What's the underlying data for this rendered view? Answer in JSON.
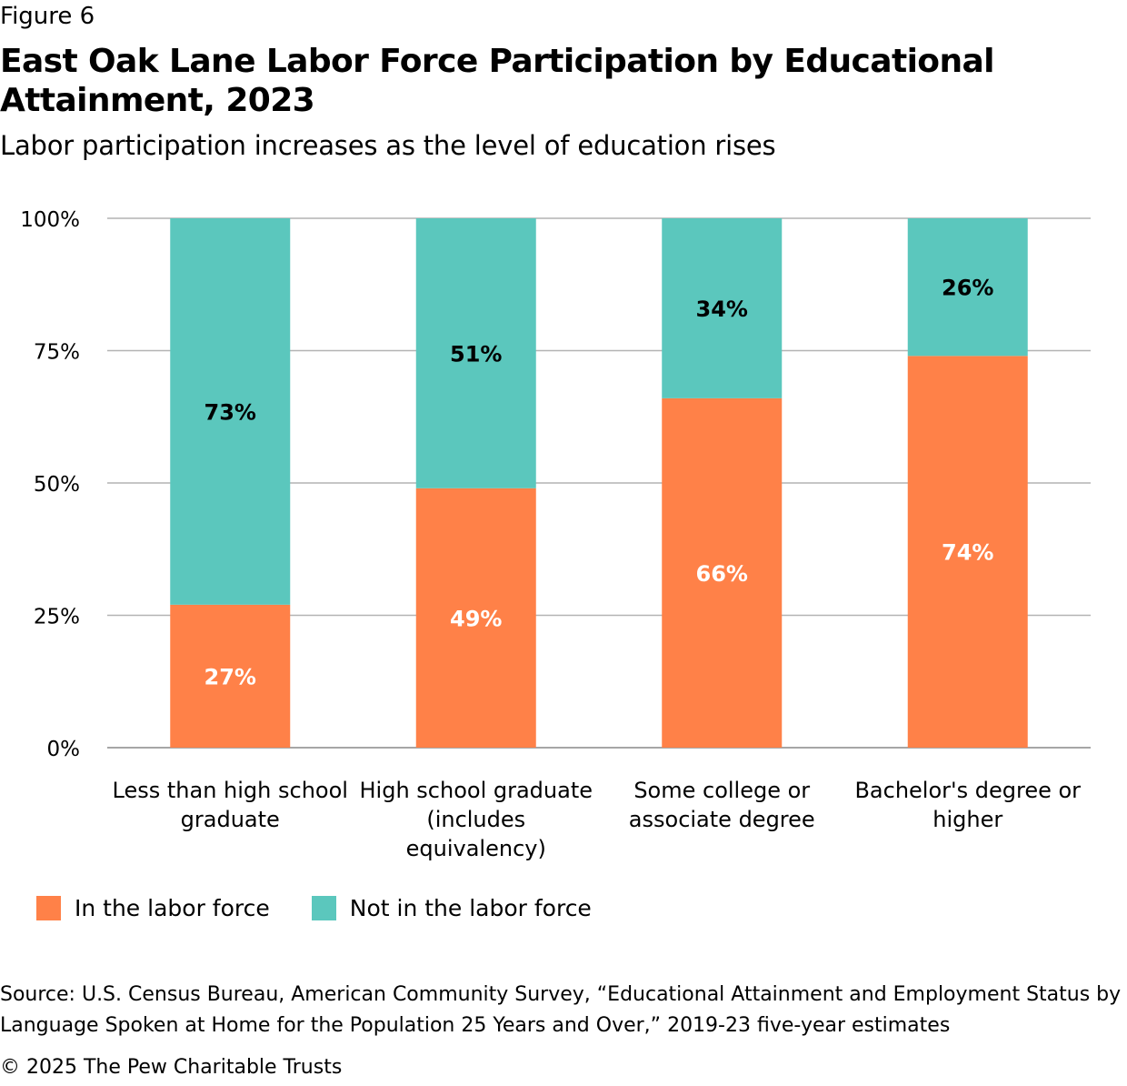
{
  "figure_label": "Figure 6",
  "title": "East Oak Lane Labor Force Participation by Educational Attainment, 2023",
  "subtitle": "Labor participation increases as the level of education rises",
  "source": "Source: U.S. Census Bureau, American Community Survey, “Educational Attainment and Employment Status by Language Spoken at Home for the Population 25 Years and Over,” 2019-23 five-year estimates",
  "copyright": "© 2025 The Pew Charitable Trusts",
  "colors": {
    "in_labor_force": "#FF8148",
    "not_in_labor_force": "#5BC7BD",
    "grid": "#b3b3b3"
  },
  "chart_data": {
    "type": "bar",
    "stacked": true,
    "categories": [
      [
        "Less than high school",
        "graduate"
      ],
      [
        "High school graduate",
        "(includes",
        "equivalency)"
      ],
      [
        "Some college or",
        "associate degree"
      ],
      [
        "Bachelor's degree or",
        "higher"
      ]
    ],
    "series": [
      {
        "name": "In the labor force",
        "values": [
          27,
          49,
          66,
          74
        ],
        "labels": [
          "27%",
          "49%",
          "66%",
          "74%"
        ],
        "color": "#FF8148"
      },
      {
        "name": "Not in the labor force",
        "values": [
          73,
          51,
          34,
          26
        ],
        "labels": [
          "73%",
          "51%",
          "34%",
          "26%"
        ],
        "color": "#5BC7BD"
      }
    ],
    "yticks": [
      "0%",
      "25%",
      "50%",
      "75%",
      "100%"
    ],
    "ylim": [
      0,
      100
    ],
    "grid": true,
    "legend": "bottom-left"
  }
}
